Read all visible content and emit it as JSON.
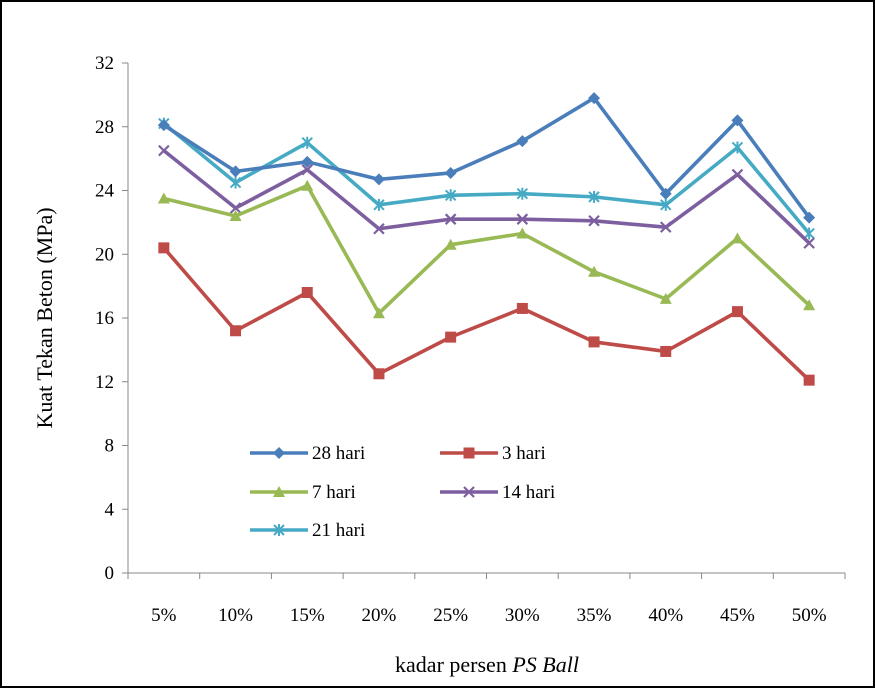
{
  "chart_data": {
    "type": "line",
    "title": "",
    "xlabel": "kadar persen ",
    "xlabel_italic": "PS Ball",
    "ylabel": "Kuat Tekan Beton (MPa)",
    "categories": [
      "5%",
      "10%",
      "15%",
      "20%",
      "25%",
      "30%",
      "35%",
      "40%",
      "45%",
      "50%"
    ],
    "ylim": [
      0,
      32
    ],
    "yticks": [
      0,
      4,
      8,
      12,
      16,
      20,
      24,
      28,
      32
    ],
    "grid": false,
    "legend": "bottom-left",
    "series": [
      {
        "name": "28 hari",
        "color": "#4a7ebb",
        "marker": "diamond",
        "values": [
          28.1,
          25.2,
          25.8,
          24.7,
          25.1,
          27.1,
          29.8,
          23.8,
          28.4,
          22.3
        ]
      },
      {
        "name": "3 hari",
        "color": "#be4b48",
        "marker": "square",
        "values": [
          20.4,
          15.2,
          17.6,
          12.5,
          14.8,
          16.6,
          14.5,
          13.9,
          16.4,
          12.1
        ]
      },
      {
        "name": "7 hari",
        "color": "#98b954",
        "marker": "triangle",
        "values": [
          23.5,
          22.4,
          24.3,
          16.3,
          20.6,
          21.3,
          18.9,
          17.2,
          21.0,
          16.8
        ]
      },
      {
        "name": "14 hari",
        "color": "#7d5fa0",
        "marker": "x",
        "values": [
          26.5,
          22.9,
          25.3,
          21.6,
          22.2,
          22.2,
          22.1,
          21.7,
          25.0,
          20.7
        ]
      },
      {
        "name": "21 hari",
        "color": "#46aac5",
        "marker": "star",
        "values": [
          28.2,
          24.5,
          27.0,
          23.1,
          23.7,
          23.8,
          23.6,
          23.1,
          26.7,
          21.3
        ]
      }
    ]
  }
}
